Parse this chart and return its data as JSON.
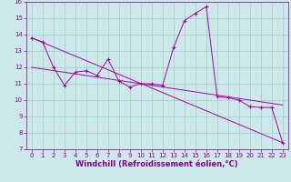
{
  "xlabel": "Windchill (Refroidissement éolien,°C)",
  "xlim": [
    -0.5,
    23.5
  ],
  "ylim": [
    7,
    16
  ],
  "xticks": [
    0,
    1,
    2,
    3,
    4,
    5,
    6,
    7,
    8,
    9,
    10,
    11,
    12,
    13,
    14,
    15,
    16,
    17,
    18,
    19,
    20,
    21,
    22,
    23
  ],
  "yticks": [
    7,
    8,
    9,
    10,
    11,
    12,
    13,
    14,
    15,
    16
  ],
  "bg_color": "#cce8e8",
  "line_color": "#aa00aa",
  "series1_x": [
    0,
    1,
    2,
    3,
    4,
    5,
    6,
    7,
    8,
    9,
    10,
    11,
    12,
    13,
    14,
    15,
    16,
    17,
    18,
    19,
    20,
    21,
    22,
    23
  ],
  "series1_y": [
    13.8,
    13.55,
    12.0,
    10.9,
    11.7,
    11.8,
    11.5,
    12.5,
    11.15,
    10.8,
    11.0,
    11.0,
    10.9,
    13.2,
    14.85,
    15.3,
    15.7,
    10.2,
    10.15,
    10.0,
    9.6,
    9.55,
    9.55,
    7.4
  ],
  "series2_x": [
    0,
    23
  ],
  "series2_y": [
    13.8,
    7.4
  ],
  "series3_x": [
    0,
    23
  ],
  "series3_y": [
    12.0,
    9.7
  ],
  "font_color": "#880088",
  "tick_fontsize": 5,
  "label_fontsize": 6,
  "grid_color": "#99cccc"
}
